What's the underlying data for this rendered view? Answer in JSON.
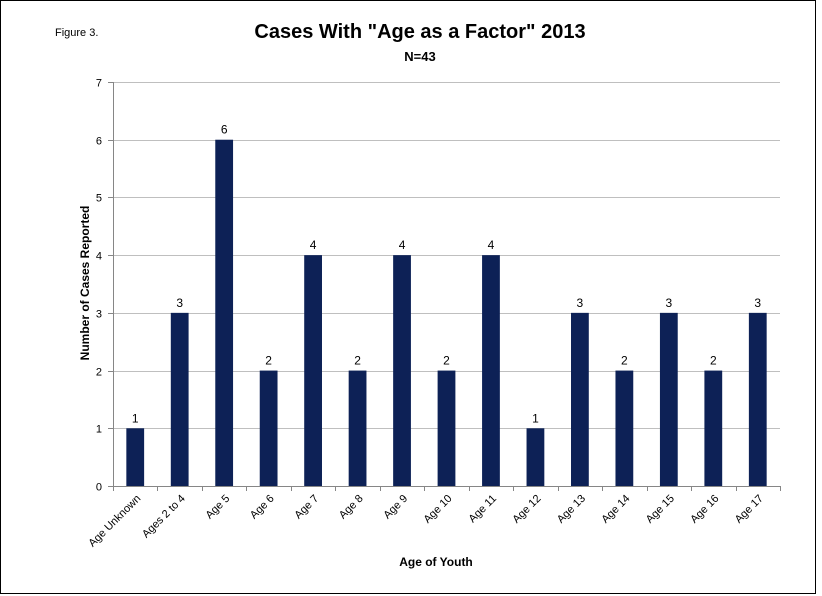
{
  "figure_label": "Figure 3.",
  "colors": {
    "bar": "#0d2156",
    "grid": "#bfbfbf",
    "axis": "#868686",
    "frame": "#000000"
  },
  "chart_data": {
    "type": "bar",
    "title": "Cases With \"Age as a Factor\" 2013",
    "subtitle": "N=43",
    "xlabel": "Age of Youth",
    "ylabel": "Number of Cases Reported",
    "ylim": [
      0,
      7
    ],
    "yticks": [
      0,
      1,
      2,
      3,
      4,
      5,
      6,
      7
    ],
    "grid": true,
    "legend": "none",
    "categories": [
      "Age Unknown",
      "Ages 2 to 4",
      "Age 5",
      "Age 6",
      "Age 7",
      "Age 8",
      "Age 9",
      "Age 10",
      "Age 11",
      "Age 12",
      "Age 13",
      "Age 14",
      "Age 15",
      "Age 16",
      "Age 17"
    ],
    "values": [
      1,
      3,
      6,
      2,
      4,
      2,
      4,
      2,
      4,
      1,
      3,
      2,
      3,
      2,
      3
    ]
  }
}
